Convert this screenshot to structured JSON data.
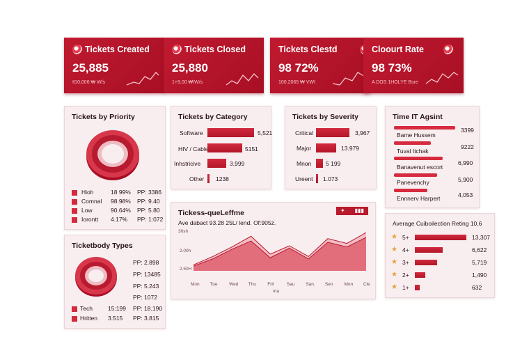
{
  "kpis": [
    {
      "title": "Tickets Created",
      "value": "25,885",
      "sub": "Ю0,006 ₩ W/s"
    },
    {
      "title": "Tickets Closed",
      "value": "25,880",
      "sub": "1+9,00 ₩/W/s"
    },
    {
      "title": "Tickets Clestd",
      "value": "98 72%",
      "sub": "100,2065 ₩ VWI"
    },
    {
      "title": "Cloourt Rate",
      "value": "98 73%",
      "sub": "A DOS 1HOLYE Bsre"
    }
  ],
  "priority": {
    "title": "Tickets by Priority",
    "rows": [
      {
        "label": "Hioh",
        "pct": "18 99%",
        "pp": "PP: 3386"
      },
      {
        "label": "Comnal",
        "pct": "98.98%",
        "pp": "PP: 9.40"
      },
      {
        "label": "Low",
        "pct": "90.64%",
        "pp": "PP: 5.80"
      },
      {
        "label": "Iorontt",
        "pct": "4.17%",
        "pp": "PP: 1:072"
      }
    ]
  },
  "category": {
    "title": "Tickets by Category",
    "rows": [
      {
        "label": "Software",
        "value": "5,521",
        "ratio": 0.95
      },
      {
        "label": "HIV / Cable",
        "value": "5151",
        "ratio": 0.72
      },
      {
        "label": "Inhstricive",
        "value": "3,999",
        "ratio": 0.38
      },
      {
        "label": "Other",
        "value": "1238",
        "ratio": 0.04
      }
    ]
  },
  "severity": {
    "title": "Tickets by Severity",
    "rows": [
      {
        "label": "Critical",
        "value": "3,967",
        "ratio": 0.93
      },
      {
        "label": "Major",
        "value": "13.979",
        "ratio": 0.55
      },
      {
        "label": "Mnon",
        "value": "5 199",
        "ratio": 0.2
      },
      {
        "label": "Ureent",
        "value": "1.073",
        "ratio": 0.05
      }
    ]
  },
  "agent": {
    "title": "Time IT Agsint",
    "rows": [
      {
        "name": "Bame Hussem",
        "value": "3399",
        "ratio": 1.0
      },
      {
        "name": "Tuval Itchak",
        "value": "9222",
        "ratio": 0.6
      },
      {
        "name": "Banavenut escort",
        "value": "6,990",
        "ratio": 0.8
      },
      {
        "name": "Panevenchy",
        "value": "5,900",
        "ratio": 0.7
      },
      {
        "name": "Ennnerv Harpert",
        "value": "4,053",
        "ratio": 0.55
      }
    ]
  },
  "types": {
    "title": "Ticketbody Types",
    "pp": [
      "PP: 2.898",
      "PP: 13485",
      "PP: 5.243",
      "PP: 1072"
    ],
    "rows": [
      {
        "label": "Tech",
        "pct": "15:199",
        "pp": "PP: 18.190"
      },
      {
        "label": "Hritten",
        "pct": "3.515",
        "pp": "PP: 3.815"
      }
    ]
  },
  "timeline": {
    "title": "Tickess-queLeffme",
    "subtitle": "Ave dabact 93.28 25L/ lend. Of:905z.",
    "yticks": [
      "30sh",
      "2.00h",
      "2.50H"
    ],
    "xticks": [
      "Mon",
      "Tue",
      "Wed",
      "Thu",
      "Frll",
      "Sau",
      "San.",
      "Sen",
      "Mon",
      "Cle"
    ],
    "xlabel": "ma",
    "chart_data": {
      "type": "area",
      "x": [
        "Mon",
        "Tue",
        "Wed",
        "Thu",
        "Frll",
        "Sau",
        "San.",
        "Sen",
        "Mon",
        "Cle"
      ],
      "series": [
        {
          "values": [
            0.5,
            1.2,
            2.0,
            2.9,
            1.4,
            2.1,
            1.2,
            2.7,
            2.3,
            3.2
          ]
        },
        {
          "values": [
            0.4,
            1.0,
            1.8,
            2.5,
            1.1,
            1.9,
            1.0,
            2.4,
            2.0,
            2.8
          ]
        }
      ]
    }
  },
  "rating": {
    "title": "Average Cuiboilection Reting 10,6",
    "rows": [
      {
        "label": "5+",
        "value": "13,307",
        "ratio": 1.0
      },
      {
        "label": "4+",
        "value": "6,622",
        "ratio": 0.54
      },
      {
        "label": "3+",
        "value": "5,719",
        "ratio": 0.43
      },
      {
        "label": "2+",
        "value": "1,490",
        "ratio": 0.2
      },
      {
        "label": "1+",
        "value": "632",
        "ratio": 0.1
      }
    ]
  },
  "colors": {
    "accent": "#c01a30",
    "bar": "#d12a3f",
    "star": "#e8a23a"
  }
}
